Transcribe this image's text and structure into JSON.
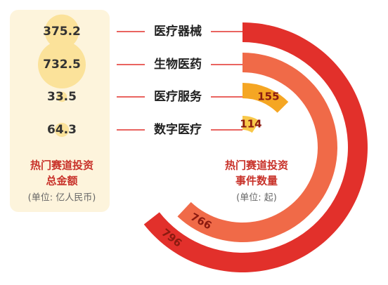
{
  "chart_data": {
    "type": "radial_bar",
    "categories": [
      "医疗器械",
      "生物医药",
      "医疗服务",
      "数字医疗"
    ],
    "amount": {
      "title": [
        "热门赛道投资",
        "总金额"
      ],
      "unit": "(单位: 亿人民币)",
      "values": [
        375.2,
        732.5,
        33.5,
        64.3
      ],
      "color": "#fbe29a"
    },
    "events": {
      "title": [
        "热门赛道投资",
        "事件数量"
      ],
      "unit": "(单位: 起)",
      "values": [
        796,
        766,
        155,
        114
      ],
      "colors": [
        "#e2302b",
        "#f06a48",
        "#f5a623",
        "#f8c84a"
      ]
    }
  }
}
